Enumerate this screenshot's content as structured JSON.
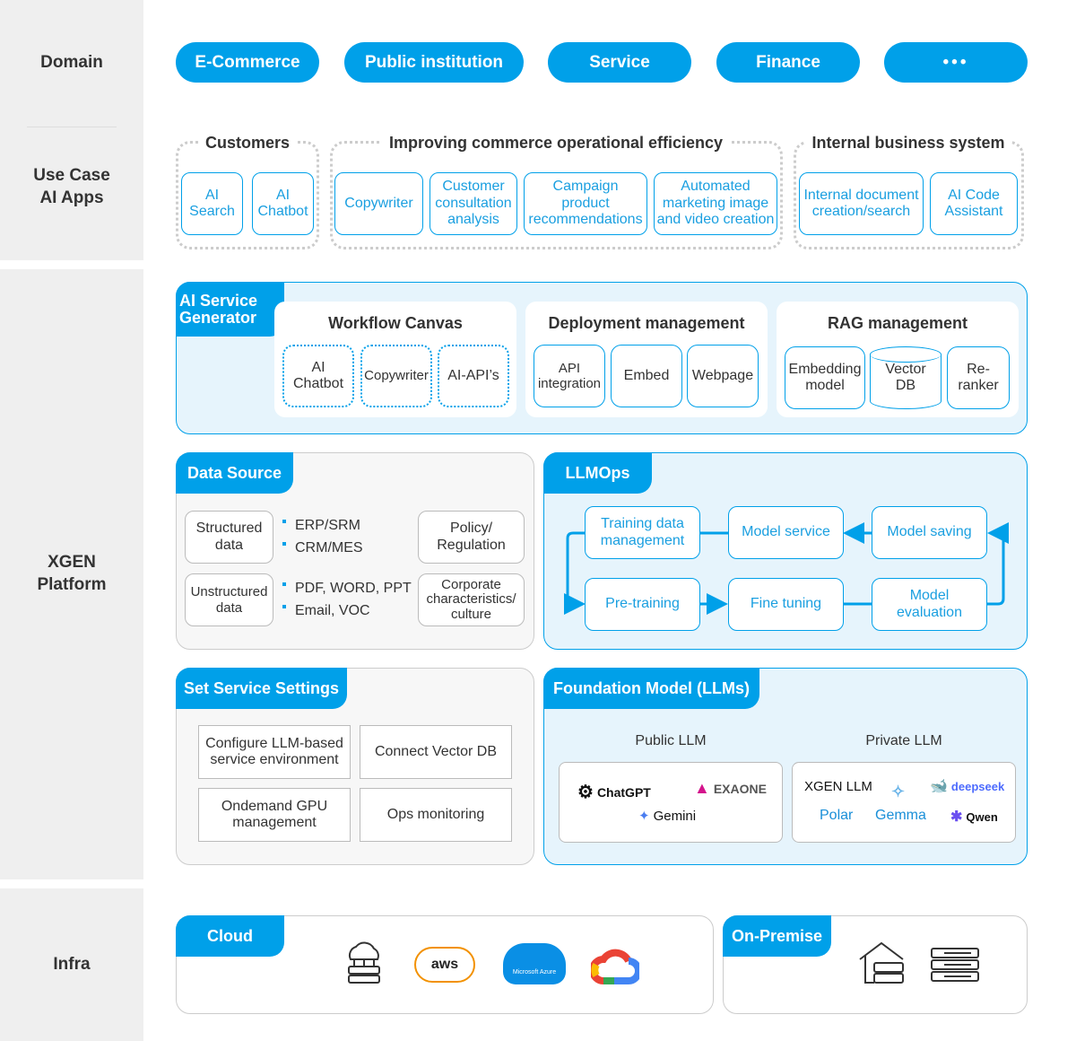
{
  "sidebar": {
    "domain": "Domain",
    "use_case": "Use Case\nAI Apps",
    "xgen": "XGEN\nPlatform",
    "infra": "Infra"
  },
  "domains": [
    "E-Commerce",
    "Public institution",
    "Service",
    "Finance",
    "•••"
  ],
  "use_cases": {
    "groups": [
      {
        "label": "Customers",
        "items": [
          "AI Search",
          "AI Chatbot"
        ]
      },
      {
        "label": "Improving commerce operational efficiency",
        "items": [
          "Copywriter",
          "Customer consultation analysis",
          "Campaign product recommendations",
          "Automated marketing image and video creation"
        ]
      },
      {
        "label": "Internal business system",
        "items": [
          "Internal document creation/search",
          "AI Code Assistant"
        ]
      }
    ]
  },
  "ai_service_generator": {
    "tab": "AI Service Generator",
    "workflow": {
      "title": "Workflow Canvas",
      "items": [
        "AI Chatbot",
        "Copywriter",
        "AI-API’s"
      ]
    },
    "deployment": {
      "title": "Deployment management",
      "items": [
        "API integration",
        "Embed",
        "Webpage"
      ]
    },
    "rag": {
      "title": "RAG management",
      "items": [
        "Embedding model",
        "Vector DB",
        "Re-ranker"
      ]
    }
  },
  "data_source": {
    "tab": "Data Source",
    "structured": "Structured data",
    "structured_items": [
      "ERP/SRM",
      "CRM/MES"
    ],
    "unstructured": "Unstructured data",
    "unstructured_items": [
      "PDF, WORD, PPT",
      "Email, VOC"
    ],
    "policy": "Policy/ Regulation",
    "corporate": "Corporate characteristics/ culture"
  },
  "llmops": {
    "tab": "LLMOps",
    "steps": [
      "Training data management",
      "Model service",
      "Model saving",
      "Pre-training",
      "Fine tuning",
      "Model evaluation"
    ]
  },
  "service_settings": {
    "tab": "Set Service Settings",
    "items": [
      "Configure LLM-based service environment",
      "Connect Vector DB",
      "Ondemand GPU management",
      "Ops monitoring"
    ]
  },
  "foundation": {
    "tab": "Foundation Model (LLMs)",
    "public_label": "Public LLM",
    "public": [
      "ChatGPT",
      "EXAONE",
      "Gemini"
    ],
    "private_label": "Private LLM",
    "private": [
      "XGEN LLM",
      "deepseek",
      "Polar",
      "Gemma",
      "Qwen"
    ]
  },
  "infra": {
    "cloud_tab": "Cloud",
    "cloud_icons": [
      "cloud-server-icon",
      "aws",
      "Microsoft Azure",
      "google-cloud-icon"
    ],
    "onprem_tab": "On-Premise",
    "onprem_icons": [
      "house-server-icon",
      "server-rack-icon"
    ]
  },
  "colors": {
    "accent": "#00a0e9",
    "panel_blue": "#e6f4fc",
    "sidebar": "#efefef"
  }
}
